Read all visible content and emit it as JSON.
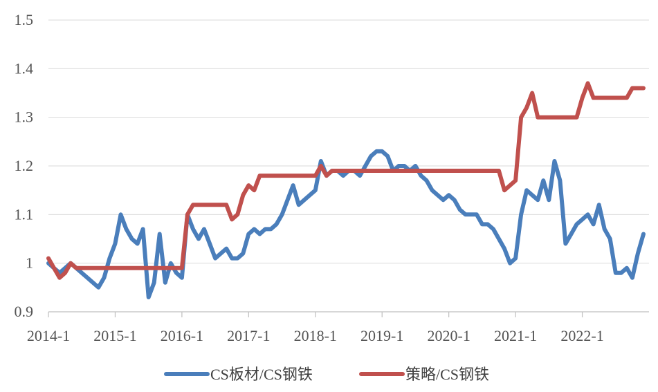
{
  "chart_data": {
    "type": "line",
    "title": "",
    "xlabel": "",
    "ylabel": "",
    "ylim": [
      0.9,
      1.5
    ],
    "yticks": [
      "0.9",
      "1",
      "1.1",
      "1.2",
      "1.3",
      "1.4",
      "1.5"
    ],
    "xlim": [
      "2014-01",
      "2022-12"
    ],
    "xticks": [
      "2014-1",
      "2015-1",
      "2016-1",
      "2017-1",
      "2018-1",
      "2019-1",
      "2020-1",
      "2021-1",
      "2022-1"
    ],
    "grid": "horizontal",
    "legend": "bottom",
    "series": [
      {
        "name": "CS板材/CS钢铁",
        "color": "#4a7ebb",
        "points": [
          [
            "2014-01",
            1.0
          ],
          [
            "2014-02",
            0.99
          ],
          [
            "2014-03",
            0.98
          ],
          [
            "2014-04",
            0.99
          ],
          [
            "2014-05",
            1.0
          ],
          [
            "2014-06",
            0.99
          ],
          [
            "2014-07",
            0.98
          ],
          [
            "2014-08",
            0.97
          ],
          [
            "2014-09",
            0.96
          ],
          [
            "2014-10",
            0.95
          ],
          [
            "2014-11",
            0.97
          ],
          [
            "2014-12",
            1.01
          ],
          [
            "2015-01",
            1.04
          ],
          [
            "2015-02",
            1.1
          ],
          [
            "2015-03",
            1.07
          ],
          [
            "2015-04",
            1.05
          ],
          [
            "2015-05",
            1.04
          ],
          [
            "2015-06",
            1.07
          ],
          [
            "2015-07",
            0.93
          ],
          [
            "2015-08",
            0.96
          ],
          [
            "2015-09",
            1.06
          ],
          [
            "2015-10",
            0.96
          ],
          [
            "2015-11",
            1.0
          ],
          [
            "2015-12",
            0.98
          ],
          [
            "2016-01",
            0.97
          ],
          [
            "2016-02",
            1.1
          ],
          [
            "2016-03",
            1.07
          ],
          [
            "2016-04",
            1.05
          ],
          [
            "2016-05",
            1.07
          ],
          [
            "2016-06",
            1.04
          ],
          [
            "2016-07",
            1.01
          ],
          [
            "2016-08",
            1.02
          ],
          [
            "2016-09",
            1.03
          ],
          [
            "2016-10",
            1.01
          ],
          [
            "2016-11",
            1.01
          ],
          [
            "2016-12",
            1.02
          ],
          [
            "2017-01",
            1.06
          ],
          [
            "2017-02",
            1.07
          ],
          [
            "2017-03",
            1.06
          ],
          [
            "2017-04",
            1.07
          ],
          [
            "2017-05",
            1.07
          ],
          [
            "2017-06",
            1.08
          ],
          [
            "2017-07",
            1.1
          ],
          [
            "2017-08",
            1.13
          ],
          [
            "2017-09",
            1.16
          ],
          [
            "2017-10",
            1.12
          ],
          [
            "2017-11",
            1.13
          ],
          [
            "2017-12",
            1.14
          ],
          [
            "2018-01",
            1.15
          ],
          [
            "2018-02",
            1.21
          ],
          [
            "2018-03",
            1.18
          ],
          [
            "2018-04",
            1.19
          ],
          [
            "2018-05",
            1.19
          ],
          [
            "2018-06",
            1.18
          ],
          [
            "2018-07",
            1.19
          ],
          [
            "2018-08",
            1.19
          ],
          [
            "2018-09",
            1.18
          ],
          [
            "2018-10",
            1.2
          ],
          [
            "2018-11",
            1.22
          ],
          [
            "2018-12",
            1.23
          ],
          [
            "2019-01",
            1.23
          ],
          [
            "2019-02",
            1.22
          ],
          [
            "2019-03",
            1.19
          ],
          [
            "2019-04",
            1.2
          ],
          [
            "2019-05",
            1.2
          ],
          [
            "2019-06",
            1.19
          ],
          [
            "2019-07",
            1.2
          ],
          [
            "2019-08",
            1.18
          ],
          [
            "2019-09",
            1.17
          ],
          [
            "2019-10",
            1.15
          ],
          [
            "2019-11",
            1.14
          ],
          [
            "2019-12",
            1.13
          ],
          [
            "2020-01",
            1.14
          ],
          [
            "2020-02",
            1.13
          ],
          [
            "2020-03",
            1.11
          ],
          [
            "2020-04",
            1.1
          ],
          [
            "2020-05",
            1.1
          ],
          [
            "2020-06",
            1.1
          ],
          [
            "2020-07",
            1.08
          ],
          [
            "2020-08",
            1.08
          ],
          [
            "2020-09",
            1.07
          ],
          [
            "2020-10",
            1.05
          ],
          [
            "2020-11",
            1.03
          ],
          [
            "2020-12",
            1.0
          ],
          [
            "2021-01",
            1.01
          ],
          [
            "2021-02",
            1.1
          ],
          [
            "2021-03",
            1.15
          ],
          [
            "2021-04",
            1.14
          ],
          [
            "2021-05",
            1.13
          ],
          [
            "2021-06",
            1.17
          ],
          [
            "2021-07",
            1.13
          ],
          [
            "2021-08",
            1.21
          ],
          [
            "2021-09",
            1.17
          ],
          [
            "2021-10",
            1.04
          ],
          [
            "2021-11",
            1.06
          ],
          [
            "2021-12",
            1.08
          ],
          [
            "2022-01",
            1.09
          ],
          [
            "2022-02",
            1.1
          ],
          [
            "2022-03",
            1.08
          ],
          [
            "2022-04",
            1.12
          ],
          [
            "2022-05",
            1.07
          ],
          [
            "2022-06",
            1.05
          ],
          [
            "2022-07",
            0.98
          ],
          [
            "2022-08",
            0.98
          ],
          [
            "2022-09",
            0.99
          ],
          [
            "2022-10",
            0.97
          ],
          [
            "2022-11",
            1.02
          ],
          [
            "2022-12",
            1.06
          ]
        ]
      },
      {
        "name": "策略/CS钢铁",
        "color": "#c0504d",
        "points": [
          [
            "2014-01",
            1.01
          ],
          [
            "2014-02",
            0.99
          ],
          [
            "2014-03",
            0.97
          ],
          [
            "2014-04",
            0.98
          ],
          [
            "2014-05",
            1.0
          ],
          [
            "2014-06",
            0.99
          ],
          [
            "2014-07",
            0.99
          ],
          [
            "2015-12",
            0.99
          ],
          [
            "2016-01",
            0.99
          ],
          [
            "2016-02",
            1.1
          ],
          [
            "2016-03",
            1.12
          ],
          [
            "2016-09",
            1.12
          ],
          [
            "2016-10",
            1.09
          ],
          [
            "2016-11",
            1.1
          ],
          [
            "2016-12",
            1.14
          ],
          [
            "2017-01",
            1.16
          ],
          [
            "2017-02",
            1.15
          ],
          [
            "2017-03",
            1.18
          ],
          [
            "2018-01",
            1.18
          ],
          [
            "2018-02",
            1.2
          ],
          [
            "2018-03",
            1.18
          ],
          [
            "2018-04",
            1.19
          ],
          [
            "2020-10",
            1.19
          ],
          [
            "2020-11",
            1.15
          ],
          [
            "2020-12",
            1.16
          ],
          [
            "2021-01",
            1.17
          ],
          [
            "2021-02",
            1.3
          ],
          [
            "2021-03",
            1.32
          ],
          [
            "2021-04",
            1.35
          ],
          [
            "2021-05",
            1.3
          ],
          [
            "2021-06",
            1.3
          ],
          [
            "2021-12",
            1.3
          ],
          [
            "2022-01",
            1.34
          ],
          [
            "2022-02",
            1.37
          ],
          [
            "2022-03",
            1.34
          ],
          [
            "2022-09",
            1.34
          ],
          [
            "2022-10",
            1.36
          ],
          [
            "2022-12",
            1.36
          ]
        ]
      }
    ]
  }
}
